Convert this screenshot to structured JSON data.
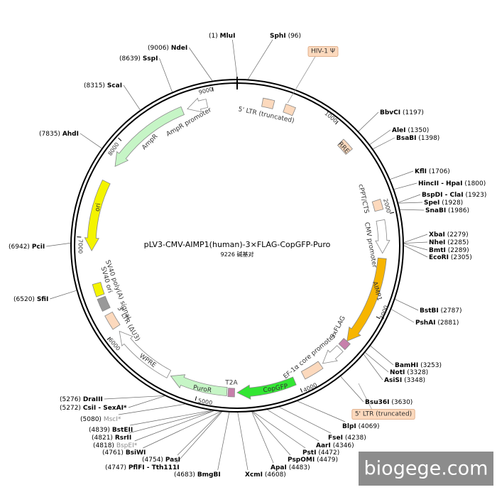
{
  "map": {
    "title": "pLV3-CMV-AIMP1(human)-3×FLAG-CopGFP-Puro",
    "subtitle": {
      "length": 9226,
      "unit": "碱基对"
    },
    "ticks": [
      1000,
      2000,
      3000,
      4000,
      5000,
      6000,
      7000,
      8000,
      9000
    ],
    "sites": [
      {
        "name": "MluI",
        "position": "(1)"
      },
      {
        "name": "SphI",
        "position": "(96)"
      },
      {
        "name": "BbvCI",
        "position": "(1197)"
      },
      {
        "name": "AleI",
        "position": "(1350)"
      },
      {
        "name": "BsaBI",
        "position": "(1398)"
      },
      {
        "name": "KflI",
        "position": "(1706)"
      },
      {
        "name": "HincII - HpaI",
        "position": "(1800)"
      },
      {
        "name": "BspDI - ClaI",
        "position": "(1923)"
      },
      {
        "name": "SpeI",
        "position": "(1928)"
      },
      {
        "name": "SnaBI",
        "position": "(1986)"
      },
      {
        "name": "XbaI",
        "position": "(2279)"
      },
      {
        "name": "NheI",
        "position": "(2285)"
      },
      {
        "name": "BmtI",
        "position": "(2289)"
      },
      {
        "name": "EcoRI",
        "position": "(2305)"
      },
      {
        "name": "BstBI",
        "position": "(2787)"
      },
      {
        "name": "PshAI",
        "position": "(2881)"
      },
      {
        "name": "BamHI",
        "position": "(3253)"
      },
      {
        "name": "NotI",
        "position": "(3328)"
      },
      {
        "name": "AsiSI",
        "position": "(3348)"
      },
      {
        "name": "Bsu36I",
        "position": "(3630)"
      },
      {
        "name": "BlpI",
        "position": "(4069)"
      },
      {
        "name": "FseI",
        "position": "(4238)"
      },
      {
        "name": "AarI",
        "position": "(4346)"
      },
      {
        "name": "PstI",
        "position": "(4472)"
      },
      {
        "name": "PspOMI",
        "position": "(4479)"
      },
      {
        "name": "ApaI",
        "position": "(4483)"
      },
      {
        "name": "XcmI",
        "position": "(4608)"
      },
      {
        "name": "BmgBI",
        "position": "(4683)"
      },
      {
        "name": "PflFI - Tth111I",
        "position": "(4747)"
      },
      {
        "name": "PasI",
        "position": "(4754)"
      },
      {
        "name": "BsiWI",
        "position": "(4761)"
      },
      {
        "name": "BspEI*",
        "position": "(4818)"
      },
      {
        "name": "RsrII",
        "position": "(4821)"
      },
      {
        "name": "BstEII",
        "position": "(4839)"
      },
      {
        "name": "MscI*",
        "position": "(5080)"
      },
      {
        "name": "CsiI - SexAI*",
        "position": "(5272)"
      },
      {
        "name": "DraIII",
        "position": "(5276)"
      },
      {
        "name": "SfiI",
        "position": "(6520)"
      },
      {
        "name": "PciI",
        "position": "(6942)"
      },
      {
        "name": "AhdI",
        "position": "(7835)"
      },
      {
        "name": "ScaI",
        "position": "(8315)"
      },
      {
        "name": "SspI",
        "position": "(8639)"
      },
      {
        "name": "NdeI",
        "position": "(9006)"
      }
    ],
    "features": [
      "5' LTR (truncated)",
      "HIV-1 Ψ",
      "RRE",
      "cPPT/CTS",
      "CMV promoter",
      "AIMP1",
      "3xFLAG",
      "EF-1α core promoter",
      "5' LTR (truncated)",
      "CopGFP",
      "T2A",
      "PuroR",
      "WPRE",
      "3' LTR (ΔU3)",
      "SV40 poly(A) signal",
      "SV40 ori",
      "ori",
      "AmpR",
      "AmpR promoter"
    ]
  },
  "watermark": "biogege.com"
}
